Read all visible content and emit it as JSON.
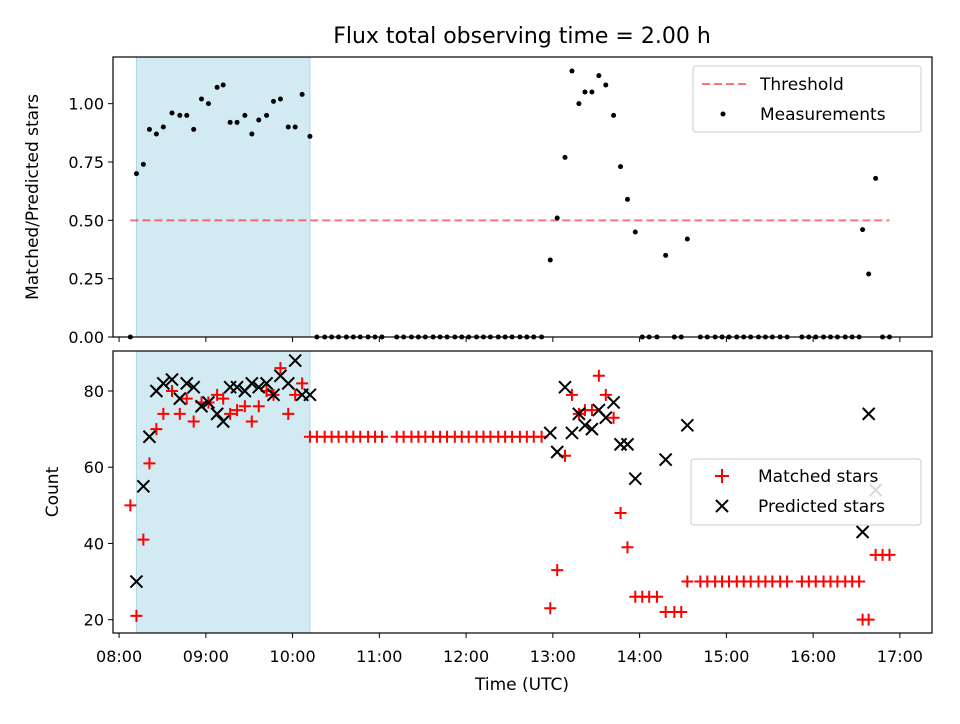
{
  "chart_data": {
    "title": "Flux total observing time = 2.00 h",
    "xlabel": "Time (UTC)",
    "x_ticks": [
      "08:00",
      "09:00",
      "10:00",
      "11:00",
      "12:00",
      "13:00",
      "14:00",
      "15:00",
      "16:00",
      "17:00"
    ],
    "x_range_hours": [
      7.93,
      17.37
    ],
    "observing_window_hours": [
      8.2,
      10.2
    ],
    "colors": {
      "window": "#add8e6",
      "threshold": "#ff0000",
      "measurements": "#000000",
      "matched": "#ff0000",
      "predicted": "#000000"
    },
    "top": {
      "type": "scatter",
      "ylabel": "Matched/Predicted stars",
      "ylim": [
        0.0,
        1.2
      ],
      "y_ticks": [
        "0.00",
        "0.25",
        "0.50",
        "0.75",
        "1.00"
      ],
      "threshold": {
        "label": "Threshold",
        "value": 0.5,
        "x_range": [
          8.13,
          16.88
        ]
      },
      "legend": [
        "Threshold",
        "Measurements"
      ],
      "series_name": "Measurements",
      "points": [
        [
          8.13,
          0.0
        ],
        [
          8.2,
          0.7
        ],
        [
          8.28,
          0.74
        ],
        [
          8.35,
          0.89
        ],
        [
          8.43,
          0.87
        ],
        [
          8.51,
          0.9
        ],
        [
          8.61,
          0.96
        ],
        [
          8.7,
          0.95
        ],
        [
          8.78,
          0.95
        ],
        [
          8.86,
          0.89
        ],
        [
          8.95,
          1.02
        ],
        [
          9.03,
          1.0
        ],
        [
          9.13,
          1.07
        ],
        [
          9.2,
          1.08
        ],
        [
          9.28,
          0.92
        ],
        [
          9.36,
          0.92
        ],
        [
          9.45,
          0.95
        ],
        [
          9.53,
          0.87
        ],
        [
          9.61,
          0.93
        ],
        [
          9.7,
          0.95
        ],
        [
          9.78,
          1.01
        ],
        [
          9.86,
          1.02
        ],
        [
          9.95,
          0.9
        ],
        [
          10.03,
          0.9
        ],
        [
          10.11,
          1.04
        ],
        [
          10.2,
          0.86
        ],
        [
          10.28,
          0.0
        ],
        [
          10.37,
          0.0
        ],
        [
          10.45,
          0.0
        ],
        [
          10.53,
          0.0
        ],
        [
          10.62,
          0.0
        ],
        [
          10.7,
          0.0
        ],
        [
          10.78,
          0.0
        ],
        [
          10.87,
          0.0
        ],
        [
          10.95,
          0.0
        ],
        [
          11.03,
          0.0
        ],
        [
          11.2,
          0.0
        ],
        [
          11.28,
          0.0
        ],
        [
          11.37,
          0.0
        ],
        [
          11.45,
          0.0
        ],
        [
          11.53,
          0.0
        ],
        [
          11.62,
          0.0
        ],
        [
          11.7,
          0.0
        ],
        [
          11.78,
          0.0
        ],
        [
          11.87,
          0.0
        ],
        [
          11.95,
          0.0
        ],
        [
          12.03,
          0.0
        ],
        [
          12.12,
          0.0
        ],
        [
          12.2,
          0.0
        ],
        [
          12.28,
          0.0
        ],
        [
          12.37,
          0.0
        ],
        [
          12.45,
          0.0
        ],
        [
          12.53,
          0.0
        ],
        [
          12.62,
          0.0
        ],
        [
          12.7,
          0.0
        ],
        [
          12.78,
          0.0
        ],
        [
          12.87,
          0.0
        ],
        [
          12.97,
          0.33
        ],
        [
          13.05,
          0.51
        ],
        [
          13.14,
          0.77
        ],
        [
          13.22,
          1.14
        ],
        [
          13.3,
          1.0
        ],
        [
          13.37,
          1.05
        ],
        [
          13.45,
          1.05
        ],
        [
          13.53,
          1.12
        ],
        [
          13.61,
          1.08
        ],
        [
          13.7,
          0.95
        ],
        [
          13.78,
          0.73
        ],
        [
          13.86,
          0.59
        ],
        [
          13.95,
          0.45
        ],
        [
          14.03,
          0.0
        ],
        [
          14.11,
          0.0
        ],
        [
          14.2,
          0.0
        ],
        [
          14.3,
          0.35
        ],
        [
          14.4,
          0.0
        ],
        [
          14.48,
          0.0
        ],
        [
          14.55,
          0.42
        ],
        [
          14.7,
          0.0
        ],
        [
          14.78,
          0.0
        ],
        [
          14.87,
          0.0
        ],
        [
          14.95,
          0.0
        ],
        [
          15.03,
          0.0
        ],
        [
          15.12,
          0.0
        ],
        [
          15.2,
          0.0
        ],
        [
          15.28,
          0.0
        ],
        [
          15.37,
          0.0
        ],
        [
          15.45,
          0.0
        ],
        [
          15.53,
          0.0
        ],
        [
          15.62,
          0.0
        ],
        [
          15.7,
          0.0
        ],
        [
          15.87,
          0.0
        ],
        [
          15.95,
          0.0
        ],
        [
          16.03,
          0.0
        ],
        [
          16.12,
          0.0
        ],
        [
          16.2,
          0.0
        ],
        [
          16.28,
          0.0
        ],
        [
          16.37,
          0.0
        ],
        [
          16.45,
          0.0
        ],
        [
          16.53,
          0.0
        ],
        [
          16.57,
          0.46
        ],
        [
          16.64,
          0.27
        ],
        [
          16.72,
          0.68
        ],
        [
          16.8,
          0.0
        ],
        [
          16.88,
          0.0
        ]
      ]
    },
    "bottom": {
      "type": "scatter",
      "ylabel": "Count",
      "ylim": [
        16.5,
        90.5
      ],
      "y_ticks": [
        "20",
        "40",
        "60",
        "80"
      ],
      "legend": [
        "Matched stars",
        "Predicted stars"
      ],
      "matched": [
        [
          8.13,
          50
        ],
        [
          8.2,
          21
        ],
        [
          8.28,
          41
        ],
        [
          8.35,
          61
        ],
        [
          8.43,
          70
        ],
        [
          8.51,
          74
        ],
        [
          8.61,
          80
        ],
        [
          8.7,
          74
        ],
        [
          8.78,
          78
        ],
        [
          8.86,
          72
        ],
        [
          8.95,
          77
        ],
        [
          9.03,
          77
        ],
        [
          9.13,
          79
        ],
        [
          9.2,
          78
        ],
        [
          9.28,
          74
        ],
        [
          9.36,
          75
        ],
        [
          9.45,
          76
        ],
        [
          9.53,
          72
        ],
        [
          9.61,
          76
        ],
        [
          9.7,
          80
        ],
        [
          9.78,
          79
        ],
        [
          9.86,
          86
        ],
        [
          9.95,
          74
        ],
        [
          10.03,
          79
        ],
        [
          10.11,
          82
        ],
        [
          10.2,
          68
        ],
        [
          10.28,
          68
        ],
        [
          10.37,
          68
        ],
        [
          10.45,
          68
        ],
        [
          10.53,
          68
        ],
        [
          10.62,
          68
        ],
        [
          10.7,
          68
        ],
        [
          10.78,
          68
        ],
        [
          10.87,
          68
        ],
        [
          10.95,
          68
        ],
        [
          11.03,
          68
        ],
        [
          11.2,
          68
        ],
        [
          11.28,
          68
        ],
        [
          11.37,
          68
        ],
        [
          11.45,
          68
        ],
        [
          11.53,
          68
        ],
        [
          11.62,
          68
        ],
        [
          11.7,
          68
        ],
        [
          11.78,
          68
        ],
        [
          11.87,
          68
        ],
        [
          11.95,
          68
        ],
        [
          12.03,
          68
        ],
        [
          12.12,
          68
        ],
        [
          12.2,
          68
        ],
        [
          12.28,
          68
        ],
        [
          12.37,
          68
        ],
        [
          12.45,
          68
        ],
        [
          12.53,
          68
        ],
        [
          12.62,
          68
        ],
        [
          12.7,
          68
        ],
        [
          12.78,
          68
        ],
        [
          12.87,
          68
        ],
        [
          12.97,
          23
        ],
        [
          13.05,
          33
        ],
        [
          13.14,
          63
        ],
        [
          13.22,
          79
        ],
        [
          13.3,
          74
        ],
        [
          13.37,
          75
        ],
        [
          13.45,
          75
        ],
        [
          13.53,
          84
        ],
        [
          13.61,
          79
        ],
        [
          13.7,
          73
        ],
        [
          13.78,
          48
        ],
        [
          13.86,
          39
        ],
        [
          13.95,
          26
        ],
        [
          14.03,
          26
        ],
        [
          14.11,
          26
        ],
        [
          14.2,
          26
        ],
        [
          14.3,
          22
        ],
        [
          14.4,
          22
        ],
        [
          14.48,
          22
        ],
        [
          14.55,
          30
        ],
        [
          14.7,
          30
        ],
        [
          14.78,
          30
        ],
        [
          14.87,
          30
        ],
        [
          14.95,
          30
        ],
        [
          15.03,
          30
        ],
        [
          15.12,
          30
        ],
        [
          15.2,
          30
        ],
        [
          15.28,
          30
        ],
        [
          15.37,
          30
        ],
        [
          15.45,
          30
        ],
        [
          15.53,
          30
        ],
        [
          15.62,
          30
        ],
        [
          15.7,
          30
        ],
        [
          15.87,
          30
        ],
        [
          15.95,
          30
        ],
        [
          16.03,
          30
        ],
        [
          16.12,
          30
        ],
        [
          16.2,
          30
        ],
        [
          16.28,
          30
        ],
        [
          16.37,
          30
        ],
        [
          16.45,
          30
        ],
        [
          16.53,
          30
        ],
        [
          16.57,
          20
        ],
        [
          16.64,
          20
        ],
        [
          16.72,
          37
        ],
        [
          16.8,
          37
        ],
        [
          16.88,
          37
        ]
      ],
      "predicted": [
        [
          8.2,
          30
        ],
        [
          8.28,
          55
        ],
        [
          8.35,
          68
        ],
        [
          8.43,
          80
        ],
        [
          8.51,
          82
        ],
        [
          8.61,
          83
        ],
        [
          8.7,
          78
        ],
        [
          8.78,
          82
        ],
        [
          8.86,
          81
        ],
        [
          8.95,
          76
        ],
        [
          9.03,
          77
        ],
        [
          9.13,
          74
        ],
        [
          9.2,
          72
        ],
        [
          9.28,
          81
        ],
        [
          9.36,
          81
        ],
        [
          9.45,
          80
        ],
        [
          9.53,
          82
        ],
        [
          9.61,
          81
        ],
        [
          9.7,
          82
        ],
        [
          9.78,
          79
        ],
        [
          9.86,
          84
        ],
        [
          9.95,
          82
        ],
        [
          10.03,
          88
        ],
        [
          10.11,
          79
        ],
        [
          10.2,
          79
        ],
        [
          12.97,
          69
        ],
        [
          13.05,
          64
        ],
        [
          13.14,
          81
        ],
        [
          13.22,
          69
        ],
        [
          13.3,
          74
        ],
        [
          13.37,
          71
        ],
        [
          13.45,
          70
        ],
        [
          13.53,
          75
        ],
        [
          13.61,
          73
        ],
        [
          13.7,
          77
        ],
        [
          13.78,
          66
        ],
        [
          13.86,
          66
        ],
        [
          13.95,
          57
        ],
        [
          14.3,
          62
        ],
        [
          14.55,
          71
        ],
        [
          16.57,
          43
        ],
        [
          16.64,
          74
        ],
        [
          16.72,
          54
        ]
      ]
    }
  }
}
